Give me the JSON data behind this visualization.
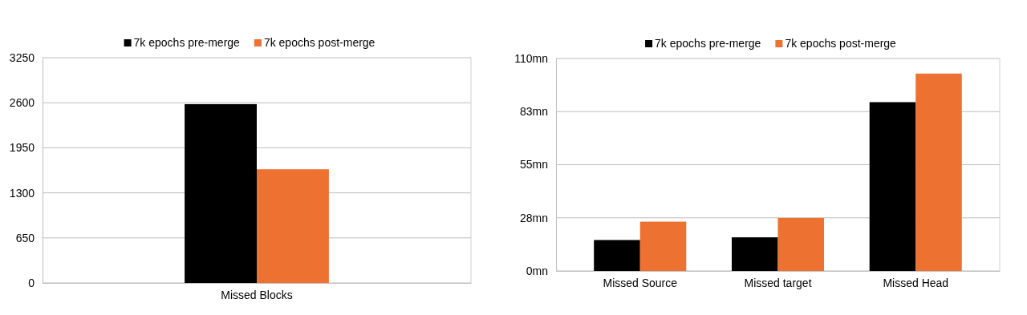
{
  "chart_data": [
    {
      "type": "bar",
      "categories": [
        "Missed Blocks"
      ],
      "series": [
        {
          "name": "7k epochs pre-merge",
          "color": "#000000",
          "values": [
            2580
          ]
        },
        {
          "name": "7k epochs post-merge",
          "color": "#ed7130",
          "values": [
            1640
          ]
        }
      ],
      "ylim": [
        0,
        3250
      ],
      "yticks": [
        0,
        650,
        1300,
        1950,
        2600,
        3250
      ],
      "grid": "y",
      "legend": "top"
    },
    {
      "type": "bar",
      "categories": [
        "Missed Source",
        "Missed target",
        "Missed Head"
      ],
      "series": [
        {
          "name": "7k epochs pre-merge",
          "color": "#000000",
          "values": [
            16,
            17.4,
            87.4
          ]
        },
        {
          "name": "7k epochs post-merge",
          "color": "#ed7130",
          "values": [
            25.5,
            27.4,
            102.2
          ]
        }
      ],
      "ylim": [
        0,
        110
      ],
      "yticks": [
        {
          "value": 0,
          "label": "0mn"
        },
        {
          "value": 27.5,
          "label": "28mn"
        },
        {
          "value": 55,
          "label": "55mn"
        },
        {
          "value": 82.5,
          "label": "83mn"
        },
        {
          "value": 110,
          "label": "110mn"
        }
      ],
      "grid": "y",
      "legend": "top"
    }
  ]
}
